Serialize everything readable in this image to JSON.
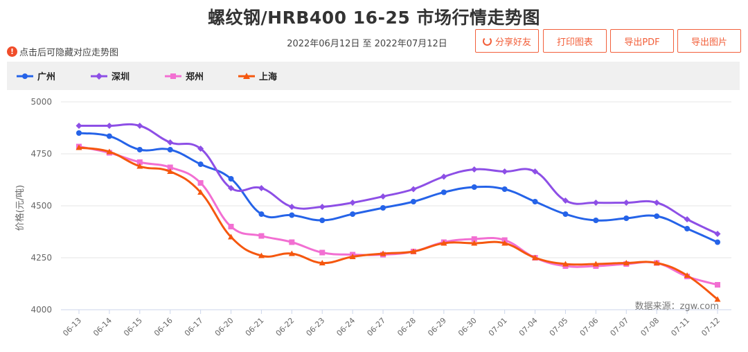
{
  "title": "螺纹钢/HRB400 16-25 市场行情走势图",
  "date_range": "2022年06月12日 至 2022年07月12日",
  "buttons": {
    "share": "分享好友",
    "print": "打印图表",
    "pdf": "导出PDF",
    "image": "导出图片"
  },
  "hint": "点击后可隐藏对应走势图",
  "source_note": "数据来源：zgw.com",
  "colors": {
    "accent": "#f25f3a",
    "guangzhou": "#2563e8",
    "shenzhen": "#8d4fe6",
    "zhengzhou": "#f26fd2",
    "shanghai": "#f5570e"
  },
  "chart_data": {
    "type": "line",
    "title": "螺纹钢/HRB400 16-25 市场行情走势图",
    "xlabel": "",
    "ylabel": "价格(元/吨)",
    "ylim": [
      4000,
      5000
    ],
    "yticks": [
      4000,
      4250,
      4500,
      4750,
      5000
    ],
    "grid": true,
    "legend_position": "top",
    "categories": [
      "06-13",
      "06-14",
      "06-15",
      "06-16",
      "06-17",
      "06-20",
      "06-21",
      "06-22",
      "06-23",
      "06-24",
      "06-27",
      "06-28",
      "06-29",
      "06-30",
      "07-01",
      "07-04",
      "07-05",
      "07-06",
      "07-07",
      "07-08",
      "07-11",
      "07-12"
    ],
    "series": [
      {
        "name": "广州",
        "color": "#2563e8",
        "marker": "circle",
        "values": [
          4850,
          4835,
          4770,
          4770,
          4700,
          4630,
          4460,
          4455,
          4430,
          4460,
          4490,
          4520,
          4565,
          4590,
          4580,
          4520,
          4460,
          4430,
          4440,
          4450,
          4390,
          4325
        ]
      },
      {
        "name": "深圳",
        "color": "#8d4fe6",
        "marker": "diamond",
        "values": [
          4885,
          4885,
          4885,
          4805,
          4775,
          4585,
          4585,
          4495,
          4495,
          4515,
          4545,
          4580,
          4640,
          4675,
          4665,
          4665,
          4525,
          4515,
          4515,
          4515,
          4435,
          4365
        ]
      },
      {
        "name": "郑州",
        "color": "#f26fd2",
        "marker": "square",
        "values": [
          4785,
          4755,
          4710,
          4685,
          4610,
          4400,
          4355,
          4325,
          4275,
          4265,
          4265,
          4280,
          4325,
          4340,
          4335,
          4250,
          4210,
          4210,
          4220,
          4225,
          4160,
          4120
        ]
      },
      {
        "name": "上海",
        "color": "#f5570e",
        "marker": "triangle",
        "values": [
          4780,
          4760,
          4690,
          4665,
          4565,
          4350,
          4260,
          4270,
          4225,
          4255,
          4270,
          4280,
          4320,
          4320,
          4320,
          4250,
          4220,
          4220,
          4225,
          4225,
          4165,
          4050
        ]
      }
    ]
  }
}
